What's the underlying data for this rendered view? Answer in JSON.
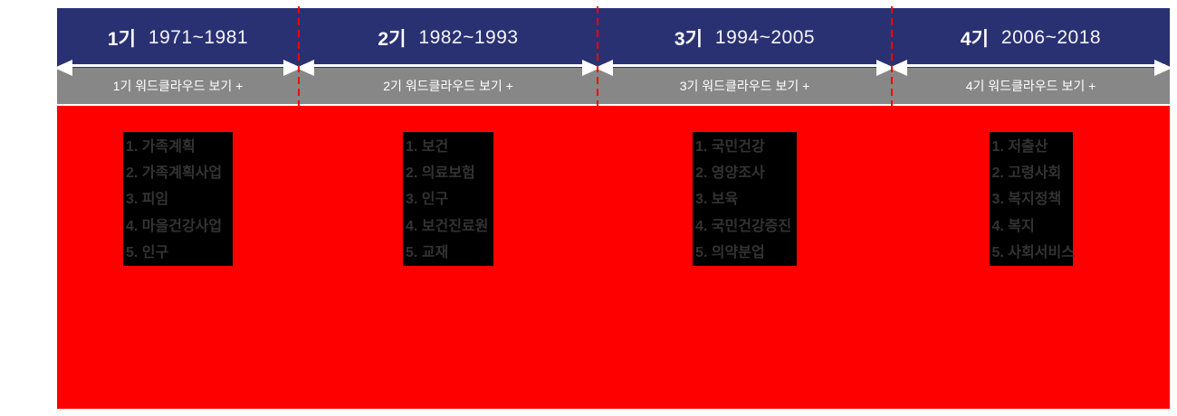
{
  "widget": {
    "type": "period-timeline",
    "description_visible_text_only": true
  },
  "colors": {
    "header_navy": "#2a3173",
    "button_gray": "#878787",
    "content_red": "#ff0000",
    "divider_red": "#ff0000",
    "keyword_box_black": "#000000",
    "keyword_text": "#333333",
    "arrow_white": "#ffffff"
  },
  "periods": [
    {
      "label": "1기",
      "years": "1971~1981",
      "wordcloud_button": "1기 워드클라우드 보기 +",
      "keywords": [
        "1. 가족계획",
        "2. 가족계획사업",
        "3. 피임",
        "4. 마을건강사업",
        "5. 인구"
      ]
    },
    {
      "label": "2기",
      "years": "1982~1993",
      "wordcloud_button": "2기 워드클라우드 보기 +",
      "keywords": [
        "1. 보건",
        "2. 의료보험",
        "3. 인구",
        "4. 보건진료원",
        "5. 교재"
      ]
    },
    {
      "label": "3기",
      "years": "1994~2005",
      "wordcloud_button": "3기 워드클라우드 보기 +",
      "keywords": [
        "1. 국민건강",
        "2. 영양조사",
        "3. 보육",
        "4. 국민건강증진",
        "5. 의약분업"
      ]
    },
    {
      "label": "4기",
      "years": "2006~2018",
      "wordcloud_button": "4기 워드클라우드 보기 +",
      "keywords": [
        "1. 저출산",
        "2. 고령사회",
        "3. 복지정책",
        "4. 복지",
        "5. 사회서비스"
      ]
    }
  ]
}
